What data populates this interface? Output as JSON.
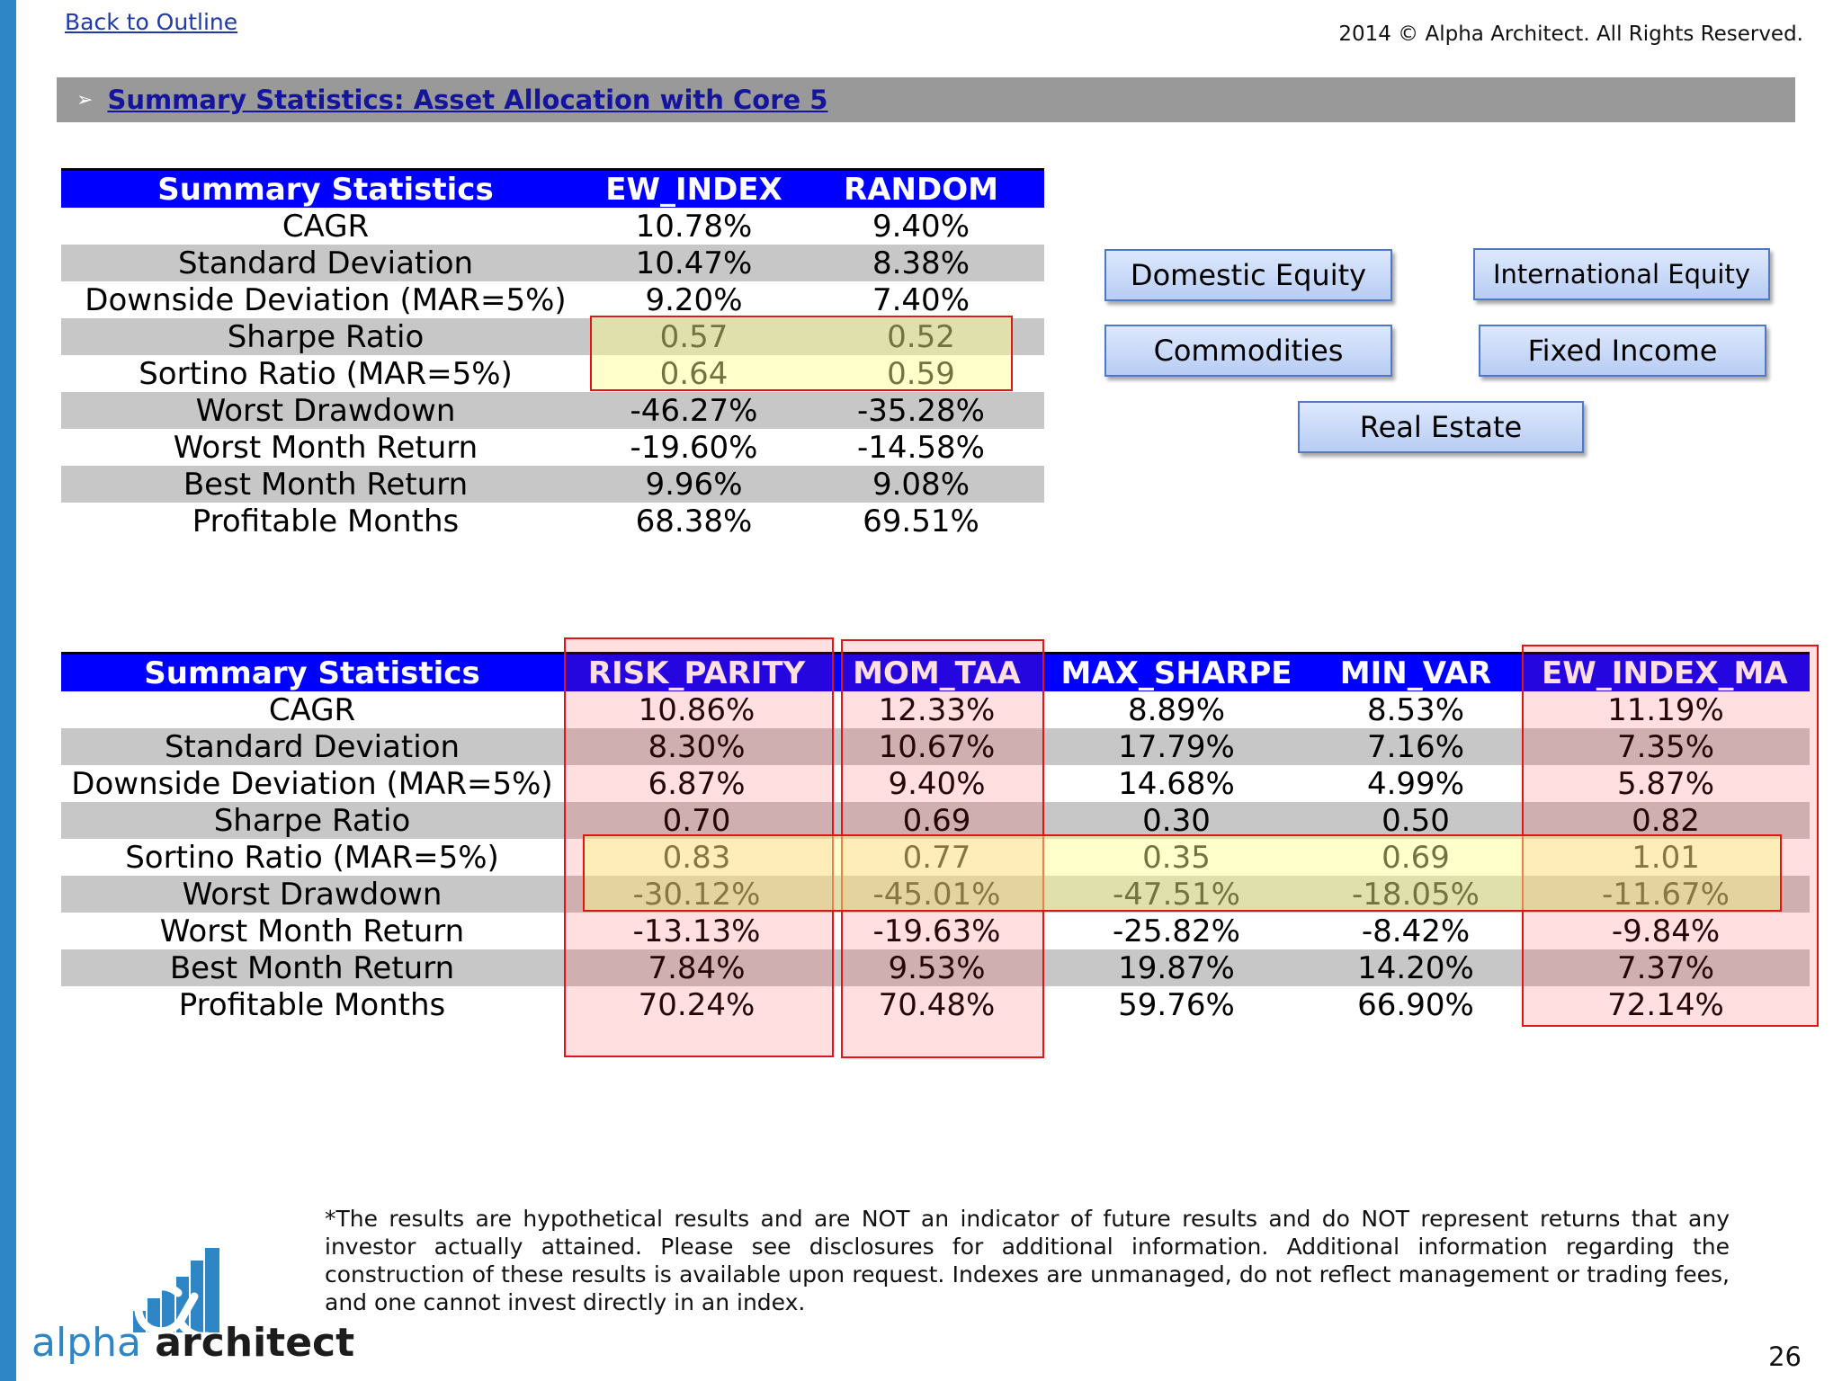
{
  "header": {
    "back_link": "Back to Outline",
    "copyright": "2014 © Alpha Architect. All Rights Reserved.",
    "section_arrow": "➢",
    "section_title": "Summary Statistics: Asset Allocation with Core 5"
  },
  "table1": {
    "columns": [
      "Summary Statistics",
      "EW_INDEX",
      "RANDOM"
    ],
    "rows": [
      [
        "CAGR",
        "10.78%",
        "9.40%"
      ],
      [
        "Standard Deviation",
        "10.47%",
        "8.38%"
      ],
      [
        "Downside Deviation (MAR=5%)",
        "9.20%",
        "7.40%"
      ],
      [
        "Sharpe Ratio",
        "0.57",
        "0.52"
      ],
      [
        "Sortino Ratio (MAR=5%)",
        "0.64",
        "0.59"
      ],
      [
        "Worst Drawdown",
        "-46.27%",
        "-35.28%"
      ],
      [
        "Worst Month Return",
        "-19.60%",
        "-14.58%"
      ],
      [
        "Best Month Return",
        "9.96%",
        "9.08%"
      ],
      [
        "Profitable Months",
        "68.38%",
        "69.51%"
      ]
    ]
  },
  "asset_classes": [
    "Domestic Equity",
    "International Equity",
    "Commodities",
    "Fixed Income",
    "Real Estate"
  ],
  "table2": {
    "columns": [
      "Summary Statistics",
      "RISK_PARITY",
      "MOM_TAA",
      "MAX_SHARPE",
      "MIN_VAR",
      "EW_INDEX_MA"
    ],
    "rows": [
      [
        "CAGR",
        "10.86%",
        "12.33%",
        "8.89%",
        "8.53%",
        "11.19%"
      ],
      [
        "Standard Deviation",
        "8.30%",
        "10.67%",
        "17.79%",
        "7.16%",
        "7.35%"
      ],
      [
        "Downside Deviation (MAR=5%)",
        "6.87%",
        "9.40%",
        "14.68%",
        "4.99%",
        "5.87%"
      ],
      [
        "Sharpe Ratio",
        "0.70",
        "0.69",
        "0.30",
        "0.50",
        "0.82"
      ],
      [
        "Sortino Ratio (MAR=5%)",
        "0.83",
        "0.77",
        "0.35",
        "0.69",
        "1.01"
      ],
      [
        "Worst Drawdown",
        "-30.12%",
        "-45.01%",
        "-47.51%",
        "-18.05%",
        "-11.67%"
      ],
      [
        "Worst Month Return",
        "-13.13%",
        "-19.63%",
        "-25.82%",
        "-8.42%",
        "-9.84%"
      ],
      [
        "Best Month Return",
        "7.84%",
        "9.53%",
        "19.87%",
        "14.20%",
        "7.37%"
      ],
      [
        "Profitable Months",
        "70.24%",
        "70.48%",
        "59.76%",
        "66.90%",
        "72.14%"
      ]
    ]
  },
  "logo": {
    "word1": "alpha",
    "word2": "architect"
  },
  "disclaimer": "*The results are hypothetical results and are NOT an indicator of future results and do NOT represent returns that any investor actually attained. Please see disclosures for additional information. Additional information regarding the construction of these results is available upon request. Indexes are unmanaged, do not reflect management or trading fees, and one cannot invest directly in an index.",
  "page_number": "26",
  "colors": {
    "header_blue": "#0000ff",
    "row_shade": "#c7c7c7",
    "highlight_border": "#e01515",
    "brand_blue": "#2f86c6"
  }
}
